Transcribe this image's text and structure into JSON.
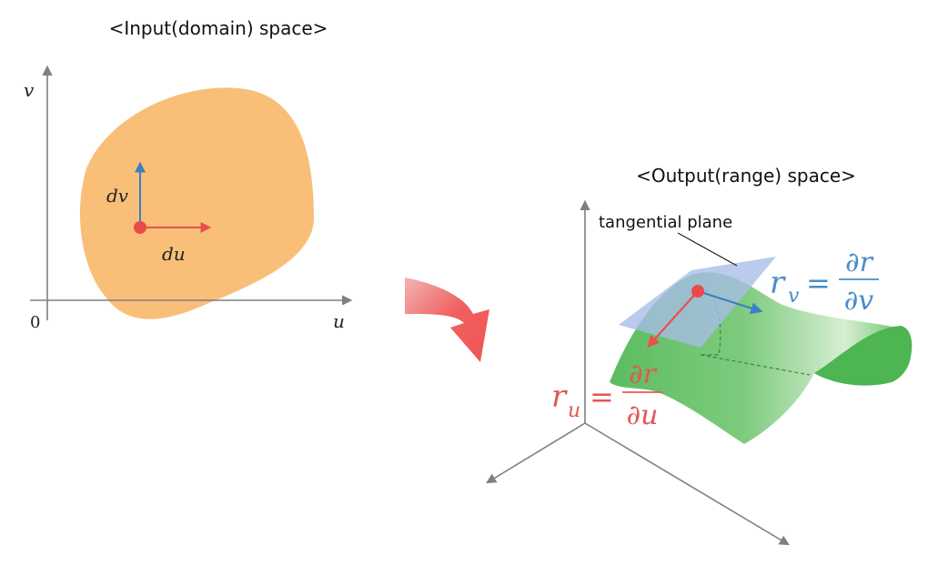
{
  "input_panel": {
    "title": "<Input(domain) space>",
    "axis_u": "u",
    "axis_v": "v",
    "origin": "0",
    "vector_du": "du",
    "vector_dv": "dv"
  },
  "output_panel": {
    "title": "<Output(range) space>",
    "tangent_plane_label": "tangential plane",
    "rv": {
      "lhs": "r",
      "sub": "v",
      "eq": "=",
      "num": "∂r",
      "den": "∂v"
    },
    "ru": {
      "lhs": "r",
      "sub": "u",
      "eq": "=",
      "num": "∂r",
      "den": "∂u"
    }
  },
  "colors": {
    "domain_fill": "#f9bf78",
    "point": "#ea4a4a",
    "red_vector": "#e85050",
    "blue_vector": "#3b7fc4",
    "rv_text": "#4a8cc9",
    "ru_text": "#e45656",
    "surface_green": "#5bbd5f",
    "plane_blue": "#a8bde8",
    "axis_gray": "#7f7f7f",
    "big_arrow": "#f05a5a"
  }
}
